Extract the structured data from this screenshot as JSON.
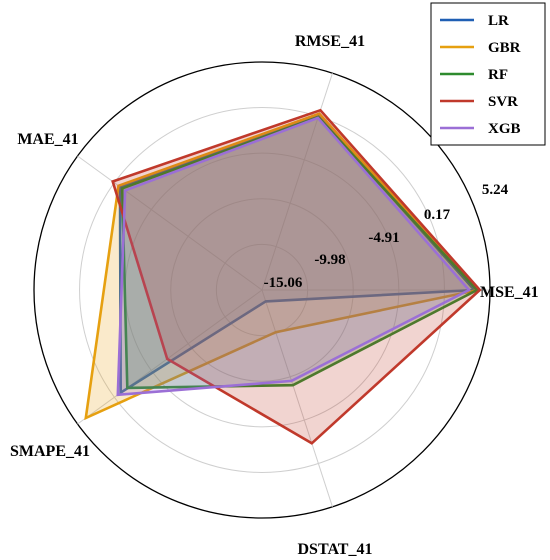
{
  "chart_data": {
    "type": "radar",
    "axes": [
      "MSE_41",
      "RMSE_41",
      "MAE_41",
      "SMAPE_41",
      "DSTAT_41"
    ],
    "radial_ticks": [
      "-15.06",
      "-9.98",
      "-4.91",
      "0.17",
      "5.24"
    ],
    "rlim": [
      -20.14,
      5.24
    ],
    "grid": true,
    "legend_position": "top-right",
    "series": [
      {
        "name": "LR",
        "color": "#1f5fb4",
        "values": [
          3.5,
          0.3,
          -0.6,
          -0.7,
          -18.8
        ]
      },
      {
        "name": "GBR",
        "color": "#e6a010",
        "values": [
          3.9,
          0.5,
          -0.4,
          4.1,
          -15.2
        ]
      },
      {
        "name": "RF",
        "color": "#2e8b2e",
        "values": [
          3.8,
          0.1,
          -0.9,
          -1.6,
          -9.0
        ]
      },
      {
        "name": "SVR",
        "color": "#c0392b",
        "values": [
          4.1,
          0.9,
          0.4,
          -7.1,
          -2.2
        ]
      },
      {
        "name": "XGB",
        "color": "#9b6fd6",
        "values": [
          2.9,
          0.0,
          -1.3,
          -0.3,
          -9.5
        ]
      }
    ]
  }
}
